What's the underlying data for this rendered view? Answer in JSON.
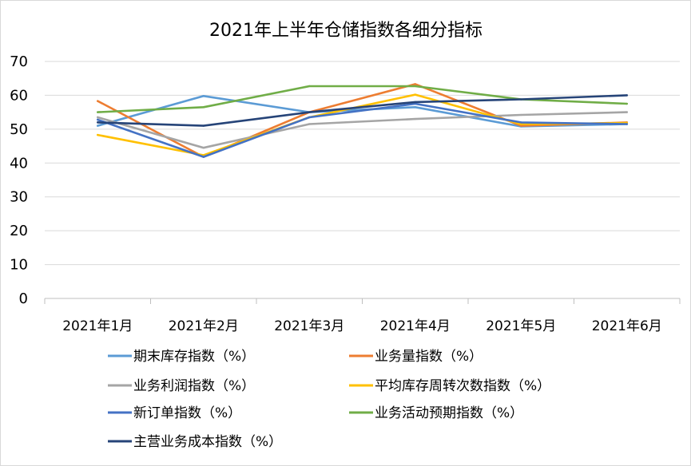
{
  "chart_data": {
    "type": "line",
    "title": "2021年上半年仓储指数各细分指标",
    "xlabel": "",
    "ylabel": "",
    "ylim": [
      0,
      70
    ],
    "yticks": [
      0,
      10,
      20,
      30,
      40,
      50,
      60,
      70
    ],
    "grid": true,
    "legend_position": "bottom",
    "categories": [
      "2021年1月",
      "2021年2月",
      "2021年3月",
      "2021年4月",
      "2021年5月",
      "2021年6月"
    ],
    "series": [
      {
        "name": "期末库存指数（%）",
        "color": "#5b9bd5",
        "values": [
          51.0,
          59.8,
          55.0,
          56.5,
          50.8,
          51.5
        ]
      },
      {
        "name": "业务量指数（%）",
        "color": "#ed7d31",
        "values": [
          58.3,
          41.8,
          55.0,
          63.3,
          51.0,
          52.0
        ]
      },
      {
        "name": "业务利润指数（%）",
        "color": "#a5a5a5",
        "values": [
          53.5,
          44.5,
          51.5,
          53.0,
          54.2,
          55.0
        ]
      },
      {
        "name": "平均库存周转次数指数（%）",
        "color": "#ffc000",
        "values": [
          48.3,
          42.3,
          53.5,
          60.2,
          51.5,
          51.8
        ]
      },
      {
        "name": "新订单指数（%）",
        "color": "#4472c4",
        "values": [
          52.8,
          41.8,
          53.5,
          57.5,
          52.0,
          51.5
        ]
      },
      {
        "name": "业务活动预期指数（%）",
        "color": "#70ad47",
        "values": [
          55.0,
          56.5,
          62.7,
          62.7,
          58.8,
          57.5
        ]
      },
      {
        "name": "主营业务成本指数（%）",
        "color": "#264478",
        "values": [
          52.0,
          51.0,
          55.0,
          58.0,
          58.8,
          60.0
        ]
      }
    ]
  }
}
